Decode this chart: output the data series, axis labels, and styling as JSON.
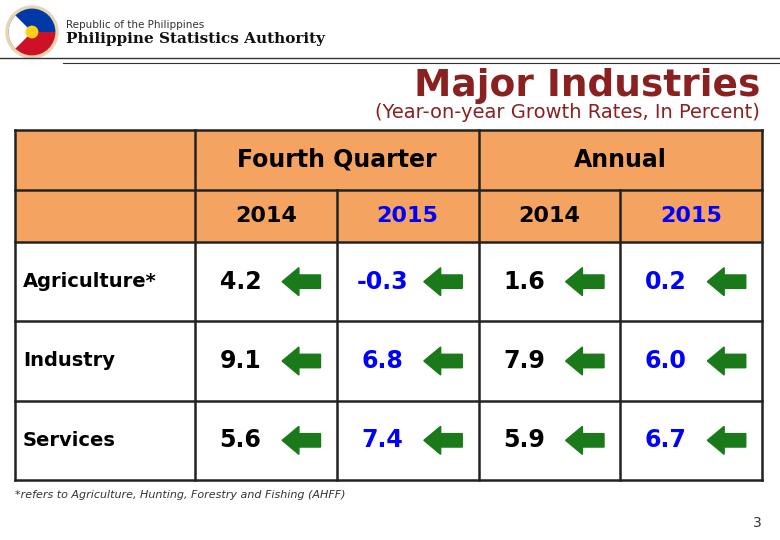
{
  "title": "Major Industries",
  "subtitle": "(Year-on-year Growth Rates, In Percent)",
  "title_color": "#8B2020",
  "subtitle_color": "#8B2020",
  "header_bg": "#F4A460",
  "border_color": "#222222",
  "col_headers": [
    "Fourth Quarter",
    "Annual"
  ],
  "year_headers": [
    "2014",
    "2015",
    "2014",
    "2015"
  ],
  "year_colors": [
    "#000000",
    "#0000FF",
    "#000000",
    "#0000FF"
  ],
  "row_labels": [
    "Agriculture*",
    "Industry",
    "Services"
  ],
  "data_values": [
    [
      "4.2",
      "-0.3",
      "1.6",
      "0.2"
    ],
    [
      "9.1",
      "6.8",
      "7.9",
      "6.0"
    ],
    [
      "5.6",
      "7.4",
      "5.9",
      "6.7"
    ]
  ],
  "data_colors": [
    [
      "#000000",
      "#0000FF",
      "#000000",
      "#0000FF"
    ],
    [
      "#000000",
      "#0000FF",
      "#000000",
      "#0000FF"
    ],
    [
      "#000000",
      "#0000FF",
      "#000000",
      "#0000FF"
    ]
  ],
  "arrow_color": "#1A7A1A",
  "footnote": "*refers to Agriculture, Hunting, Forestry and Fishing (AHFF)",
  "page_number": "3",
  "header_text1": "Republic of the Philippines",
  "header_text2": "Philippine Statistics Authority"
}
